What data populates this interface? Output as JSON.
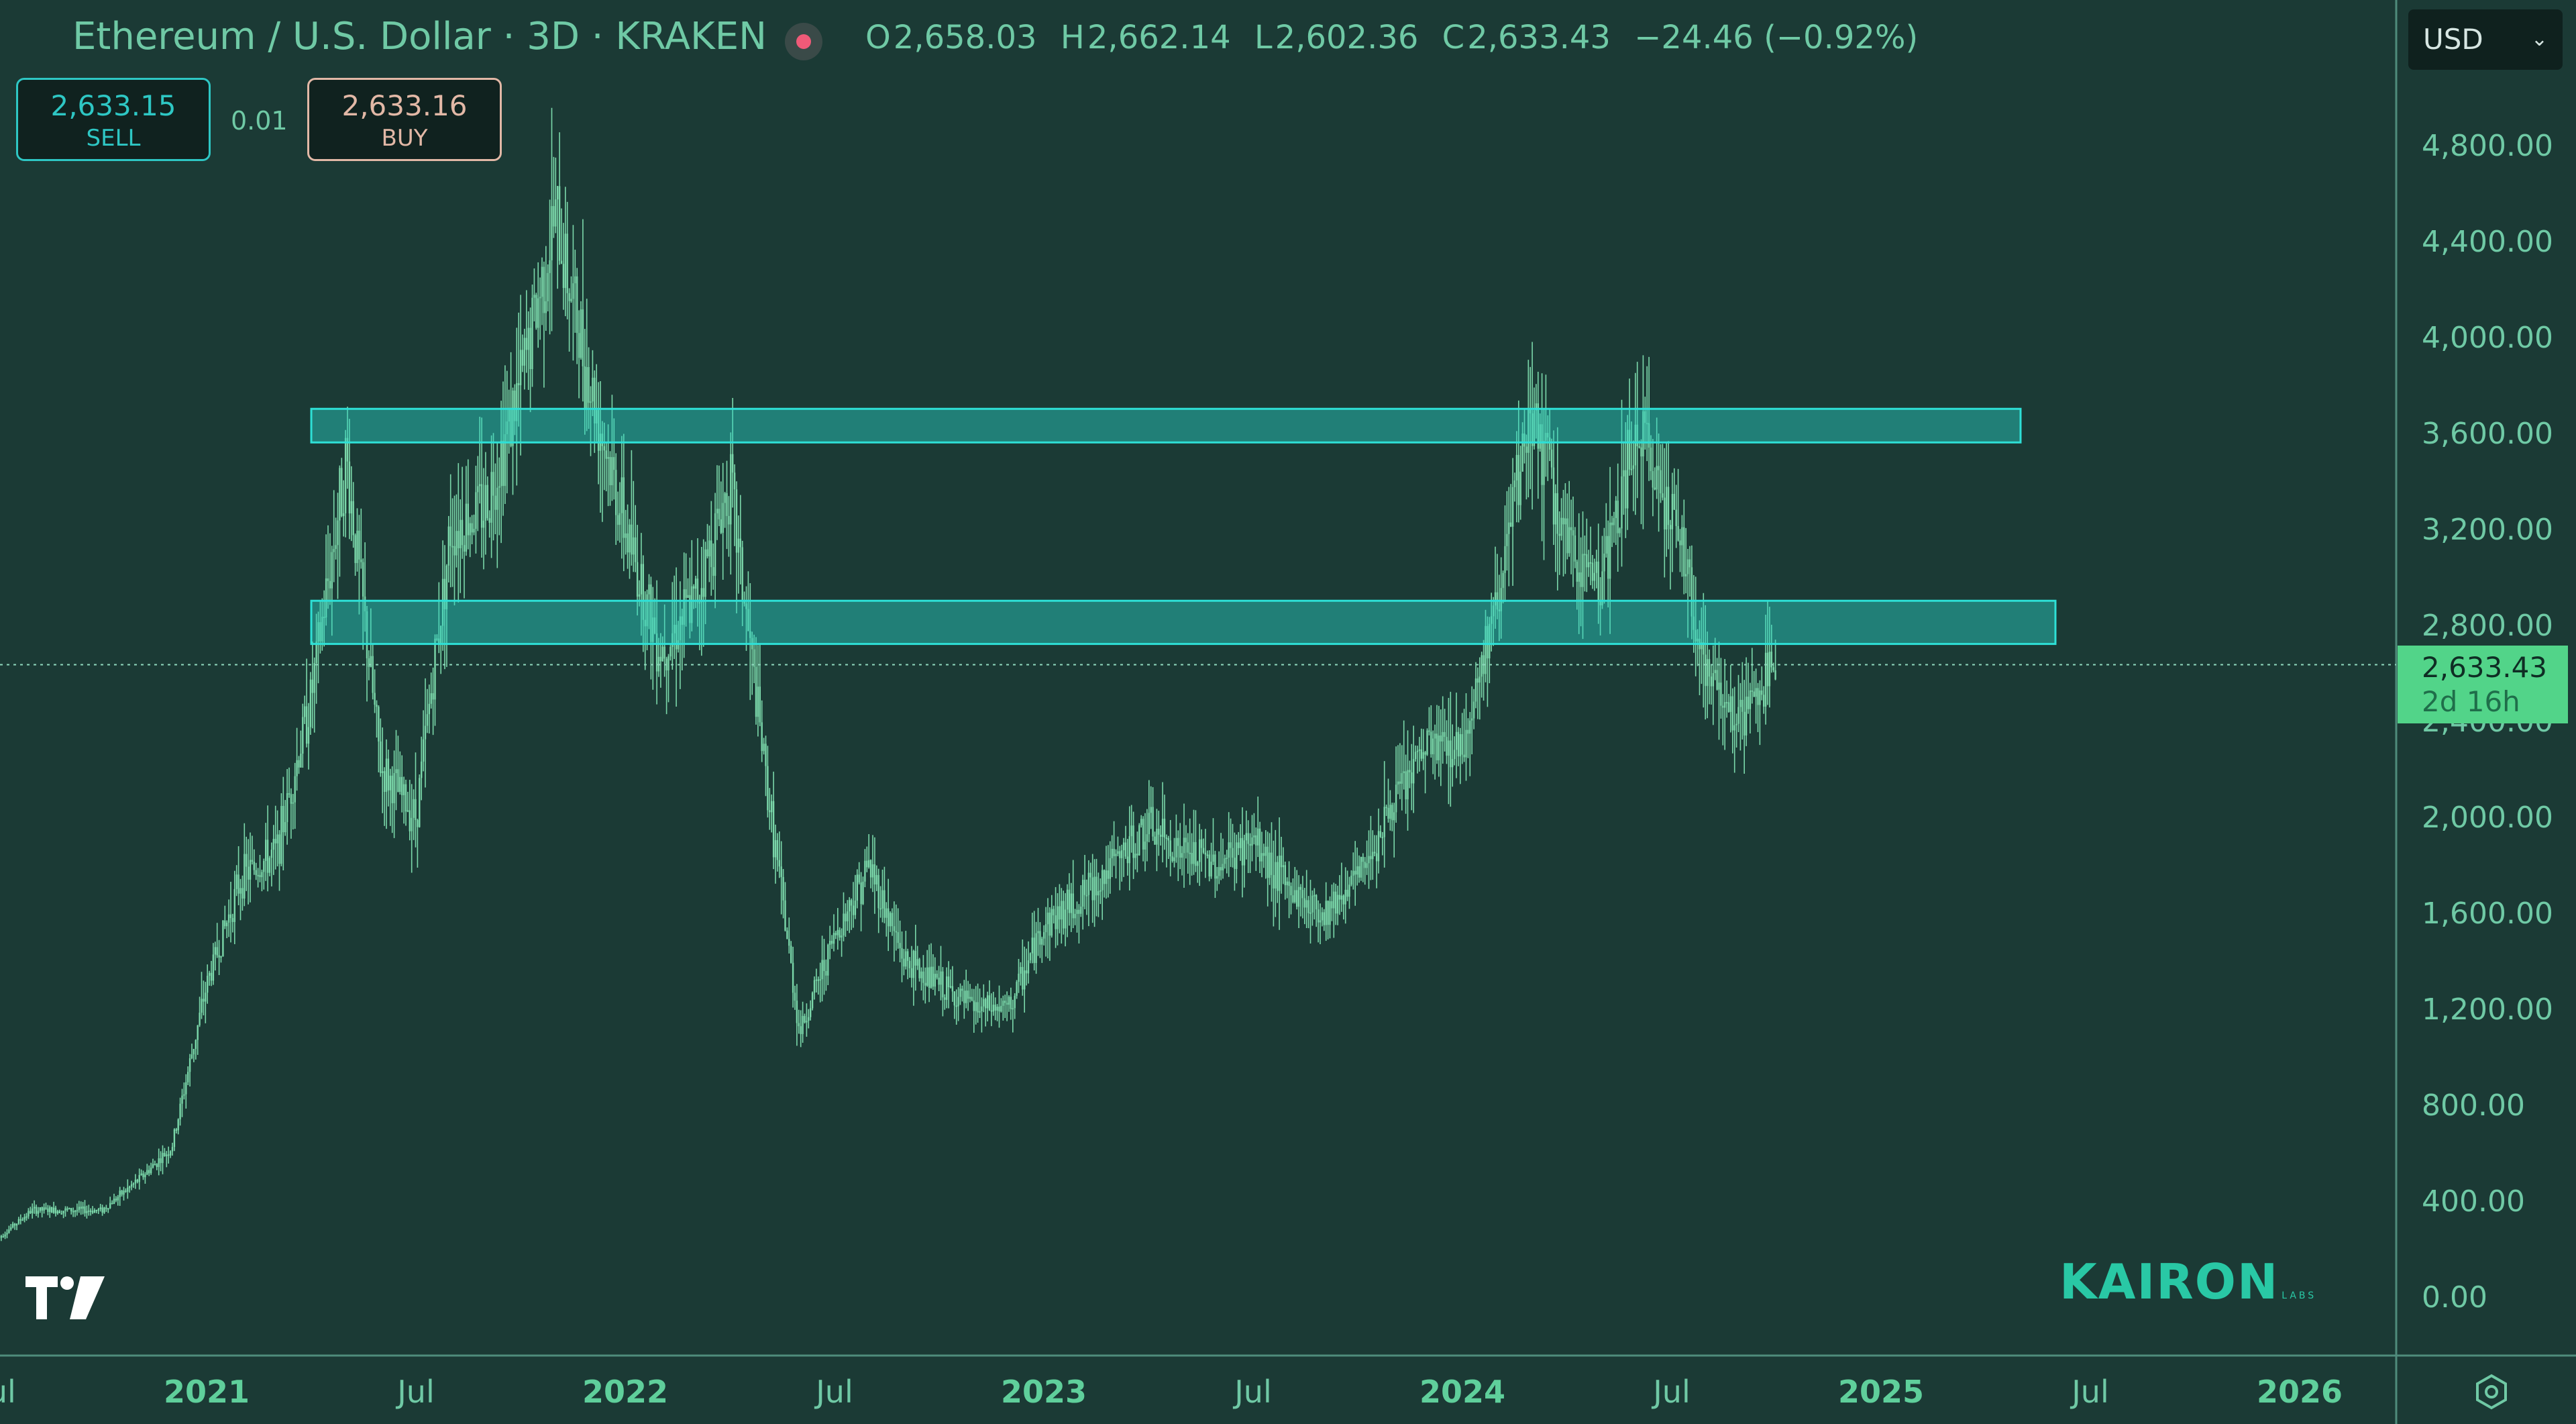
{
  "header": {
    "title": "Ethereum / U.S. Dollar · 3D · KRAKEN",
    "ohlc": {
      "open_label": "O",
      "open": "2,658.03",
      "high_label": "H",
      "high": "2,662.14",
      "low_label": "L",
      "low": "2,602.36",
      "close_label": "C",
      "close": "2,633.43",
      "change": "−24.46 (−0.92%)"
    }
  },
  "trade": {
    "sell_price": "2,633.15",
    "sell_label": "SELL",
    "spread": "0.01",
    "buy_price": "2,633.16",
    "buy_label": "BUY"
  },
  "currency_selector": {
    "value": "USD",
    "icon": "chevron-down-icon"
  },
  "last_price_tag": {
    "price": "2,633.43",
    "countdown": "2d 16h"
  },
  "watermark": {
    "text": "KAIRON",
    "sub": "LABS"
  },
  "colors": {
    "background": "#1b3a35",
    "candle": "#7bd8aa",
    "zone_fill": "#2ad4c8",
    "zone_border": "#2ee0d6",
    "axis_text": "#6fc9a5",
    "year_text": "#5fcf9b",
    "price_tag": "#52d489"
  },
  "chart_data": {
    "type": "candlestick",
    "y_axis": {
      "min": 0,
      "max": 4800,
      "ticks": [
        0,
        400,
        800,
        1200,
        1600,
        2000,
        2400,
        2800,
        3200,
        3600,
        4000,
        4400,
        4800
      ],
      "tick_labels": [
        "0.00",
        "400.00",
        "800.00",
        "1,200.00",
        "1,600.00",
        "2,000.00",
        "2,400.00",
        "2,800.00",
        "3,200.00",
        "3,600.00",
        "4,000.00",
        "4,400.00",
        "4,800.00"
      ]
    },
    "x_axis": {
      "start": "2020-07",
      "end": "2026-07",
      "ticks": [
        {
          "date": "2020-07",
          "label": "Jul",
          "year": false
        },
        {
          "date": "2021-01",
          "label": "2021",
          "year": true
        },
        {
          "date": "2021-07",
          "label": "Jul",
          "year": false
        },
        {
          "date": "2022-01",
          "label": "2022",
          "year": true
        },
        {
          "date": "2022-07",
          "label": "Jul",
          "year": false
        },
        {
          "date": "2023-01",
          "label": "2023",
          "year": true
        },
        {
          "date": "2023-07",
          "label": "Jul",
          "year": false
        },
        {
          "date": "2024-01",
          "label": "2024",
          "year": true
        },
        {
          "date": "2024-07",
          "label": "Jul",
          "year": false
        },
        {
          "date": "2025-01",
          "label": "2025",
          "year": true
        },
        {
          "date": "2025-07",
          "label": "Jul",
          "year": false
        },
        {
          "date": "2026-01",
          "label": "2026",
          "year": true
        }
      ]
    },
    "price_path": [
      {
        "date": "2020-07",
        "price": 240
      },
      {
        "date": "2020-08",
        "price": 360
      },
      {
        "date": "2020-10",
        "price": 360
      },
      {
        "date": "2020-11",
        "price": 480
      },
      {
        "date": "2020-12",
        "price": 620
      },
      {
        "date": "2021-01",
        "price": 1300
      },
      {
        "date": "2021-02",
        "price": 1750
      },
      {
        "date": "2021-03",
        "price": 1850
      },
      {
        "date": "2021-04",
        "price": 2500
      },
      {
        "date": "2021-05",
        "price": 3500
      },
      {
        "date": "2021-06",
        "price": 2200
      },
      {
        "date": "2021-07",
        "price": 2000
      },
      {
        "date": "2021-08",
        "price": 3200
      },
      {
        "date": "2021-09",
        "price": 3300
      },
      {
        "date": "2021-10",
        "price": 3800
      },
      {
        "date": "2021-11",
        "price": 4500
      },
      {
        "date": "2021-12",
        "price": 3800
      },
      {
        "date": "2022-01",
        "price": 3200
      },
      {
        "date": "2022-02",
        "price": 2700
      },
      {
        "date": "2022-03",
        "price": 2900
      },
      {
        "date": "2022-04",
        "price": 3400
      },
      {
        "date": "2022-05",
        "price": 2200
      },
      {
        "date": "2022-06",
        "price": 1100
      },
      {
        "date": "2022-07",
        "price": 1500
      },
      {
        "date": "2022-08",
        "price": 1800
      },
      {
        "date": "2022-09",
        "price": 1400
      },
      {
        "date": "2022-10",
        "price": 1300
      },
      {
        "date": "2022-11",
        "price": 1200
      },
      {
        "date": "2022-12",
        "price": 1200
      },
      {
        "date": "2023-01",
        "price": 1550
      },
      {
        "date": "2023-02",
        "price": 1650
      },
      {
        "date": "2023-04",
        "price": 1950
      },
      {
        "date": "2023-05",
        "price": 1850
      },
      {
        "date": "2023-06",
        "price": 1800
      },
      {
        "date": "2023-07",
        "price": 1900
      },
      {
        "date": "2023-08",
        "price": 1700
      },
      {
        "date": "2023-09",
        "price": 1600
      },
      {
        "date": "2023-10",
        "price": 1750
      },
      {
        "date": "2023-11",
        "price": 2050
      },
      {
        "date": "2023-12",
        "price": 2300
      },
      {
        "date": "2024-01",
        "price": 2300
      },
      {
        "date": "2024-02",
        "price": 2900
      },
      {
        "date": "2024-03",
        "price": 3700
      },
      {
        "date": "2024-04",
        "price": 3100
      },
      {
        "date": "2024-05",
        "price": 3000
      },
      {
        "date": "2024-06",
        "price": 3600
      },
      {
        "date": "2024-07",
        "price": 3300
      },
      {
        "date": "2024-08",
        "price": 2600
      },
      {
        "date": "2024-09",
        "price": 2400
      },
      {
        "date": "2024-10",
        "price": 2633
      }
    ],
    "zones": [
      {
        "from": "2021-04",
        "to": "2025-05",
        "low": 3560,
        "high": 3700
      },
      {
        "from": "2021-04",
        "to": "2025-06",
        "low": 2720,
        "high": 2900
      }
    ],
    "last_price": 2633.43
  }
}
